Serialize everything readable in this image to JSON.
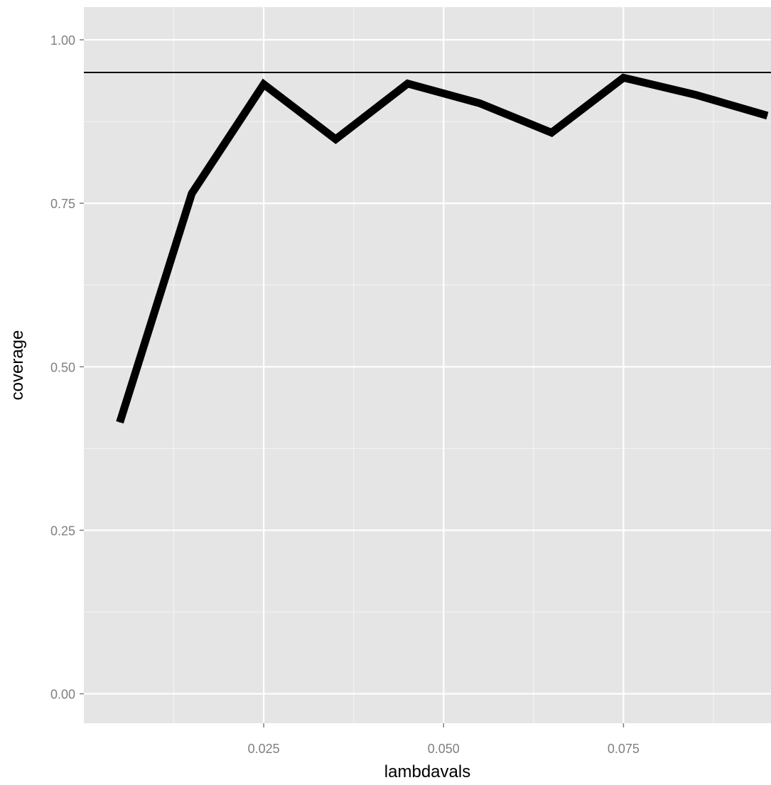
{
  "chart_data": {
    "type": "line",
    "title": "",
    "xlabel": "lambdavals",
    "ylabel": "coverage",
    "xlim": [
      0.0,
      0.0955
    ],
    "ylim": [
      -0.045,
      1.05
    ],
    "x_ticks": [
      0.025,
      0.05,
      0.075
    ],
    "x_tick_labels": [
      "0.025",
      "0.050",
      "0.075"
    ],
    "y_ticks": [
      0.0,
      0.25,
      0.5,
      0.75,
      1.0
    ],
    "y_tick_labels": [
      "0.00",
      "0.25",
      "0.50",
      "0.75",
      "1.00"
    ],
    "grid": true,
    "panel_background": "#e5e5e5",
    "grid_color": "#ffffff",
    "series": [
      {
        "x": [
          0.005,
          0.015,
          0.025,
          0.035,
          0.045,
          0.055,
          0.065,
          0.075,
          0.085,
          0.095
        ],
        "values": [
          0.415,
          0.765,
          0.932,
          0.848,
          0.933,
          0.903,
          0.858,
          0.942,
          0.916,
          0.884
        ],
        "color": "#000000"
      }
    ],
    "reference_line": {
      "y": 0.95,
      "color": "#000000"
    }
  }
}
